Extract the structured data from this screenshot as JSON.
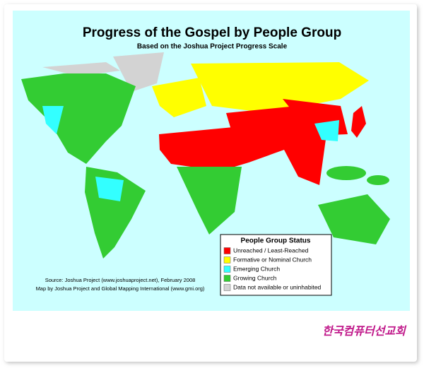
{
  "header": {
    "title": "Progress of the Gospel by People Group",
    "subtitle": "Based on the Joshua Project Progress Scale"
  },
  "legend": {
    "title": "People Group Status",
    "items": [
      {
        "label": "Unreached / Least-Reached",
        "color": "#ff0000"
      },
      {
        "label": "Formative or Nominal Church",
        "color": "#ffff00"
      },
      {
        "label": "Emerging Church",
        "color": "#33ffff"
      },
      {
        "label": "Growing Church",
        "color": "#33cc33"
      },
      {
        "label": "Data not available or uninhabited",
        "color": "#d3d3d3"
      }
    ]
  },
  "source": [
    "Source: Joshua Project (www.joshuaproject.net), February 2008",
    "Map by Joshua Project and Global Mapping International (www.gmi.org)"
  ],
  "watermark": "한국컴퓨터선교회"
}
